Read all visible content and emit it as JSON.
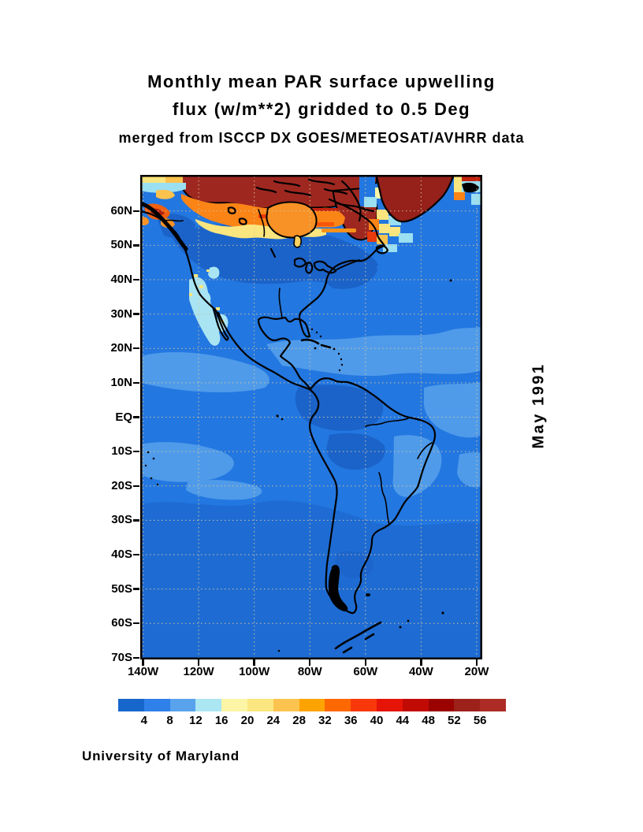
{
  "title": {
    "line1": "Monthly mean PAR surface upwelling",
    "line2": "flux (w/m**2) gridded to 0.5 Deg",
    "line3": "merged from ISCCP DX GOES/METEOSAT/AVHRR data"
  },
  "side_label": "May 1991",
  "credit": "University of Maryland",
  "map": {
    "lat_ticks": [
      "60N",
      "50N",
      "40N",
      "30N",
      "20N",
      "10N",
      "EQ",
      "10S",
      "20S",
      "30S",
      "40S",
      "50S",
      "60S",
      "70S"
    ],
    "lon_ticks": [
      "140W",
      "120W",
      "100W",
      "80W",
      "60W",
      "40W",
      "20W"
    ],
    "lat_range": [
      -70.5,
      70.5
    ],
    "lon_range": [
      -141,
      -18
    ]
  },
  "colorbar": {
    "values": [
      4,
      8,
      12,
      16,
      20,
      24,
      28,
      32,
      36,
      40,
      44,
      48,
      52,
      56
    ],
    "colors": [
      "#1666CB",
      "#2F80E8",
      "#59A3ED",
      "#ABE6F3",
      "#FCF5A5",
      "#FBE680",
      "#FCC44F",
      "#FFA303",
      "#FE6802",
      "#F8380B",
      "#E51407",
      "#C20A05",
      "#9B0301",
      "#9D211B",
      "#AC2C25"
    ],
    "ocean_color": "#2377E0",
    "south_ocean_color": "#1E6CD3",
    "arctic_color": "#9E2820"
  }
}
